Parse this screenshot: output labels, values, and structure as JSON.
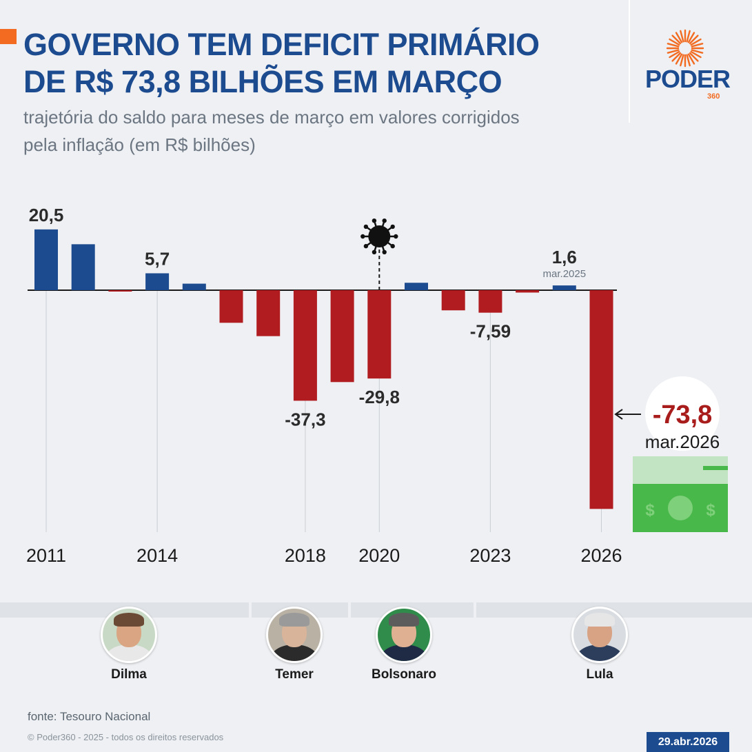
{
  "header": {
    "title_line1": "GOVERNO TEM DEFICIT PRIMÁRIO",
    "title_line2": "DE R$ 73,8 BILHÕES EM MARÇO",
    "subtitle": "trajetória do saldo para meses de março em valores corrigidos pela inflação (em R$ bilhões)"
  },
  "logo": {
    "text": "PODER",
    "sub": "360"
  },
  "colors": {
    "positive": "#1d4b8f",
    "negative": "#b01c1f",
    "highlight": "#a81c1c",
    "accent": "#f26b21"
  },
  "chart_data": {
    "type": "bar",
    "categories": [
      "2011",
      "2012",
      "2013",
      "2014",
      "2015",
      "2016",
      "2017",
      "2018",
      "2019",
      "2020",
      "2021",
      "2022",
      "2023",
      "2024",
      "2025",
      "2026"
    ],
    "values": [
      20.5,
      15.5,
      -0.4,
      5.7,
      2.2,
      -11.0,
      -15.5,
      -37.3,
      -31.0,
      -29.8,
      2.5,
      -6.8,
      -7.59,
      -0.8,
      1.6,
      -73.8
    ],
    "tick_labels": [
      "2011",
      "2014",
      "2018",
      "2020",
      "2023",
      "2026"
    ],
    "data_labels": [
      {
        "category": "2011",
        "text": "20,5"
      },
      {
        "category": "2014",
        "text": "5,7"
      },
      {
        "category": "2018",
        "text": "-37,3"
      },
      {
        "category": "2020",
        "text": "-29,8"
      },
      {
        "category": "2023",
        "text": "-7,59"
      },
      {
        "category": "2025",
        "text": "1,6",
        "sub": "mar.2025"
      }
    ],
    "highlight": {
      "category": "2026",
      "text": "-73,8",
      "sub": "mar.2026"
    },
    "annotation_icon": {
      "category": "2020",
      "icon": "virus-icon"
    },
    "ylim": [
      -80,
      24
    ],
    "grid": "vertical lines at tick years"
  },
  "presidents": [
    {
      "name": "Dilma",
      "icon": "dilma-avatar"
    },
    {
      "name": "Temer",
      "icon": "temer-avatar"
    },
    {
      "name": "Bolsonaro",
      "icon": "bolsonaro-avatar"
    },
    {
      "name": "Lula",
      "icon": "lula-avatar"
    }
  ],
  "footer": {
    "source": "fonte: Tesouro Nacional",
    "copyright": "© Poder360 - 2025 - todos os direitos reservados",
    "date": "29.abr.2026"
  }
}
